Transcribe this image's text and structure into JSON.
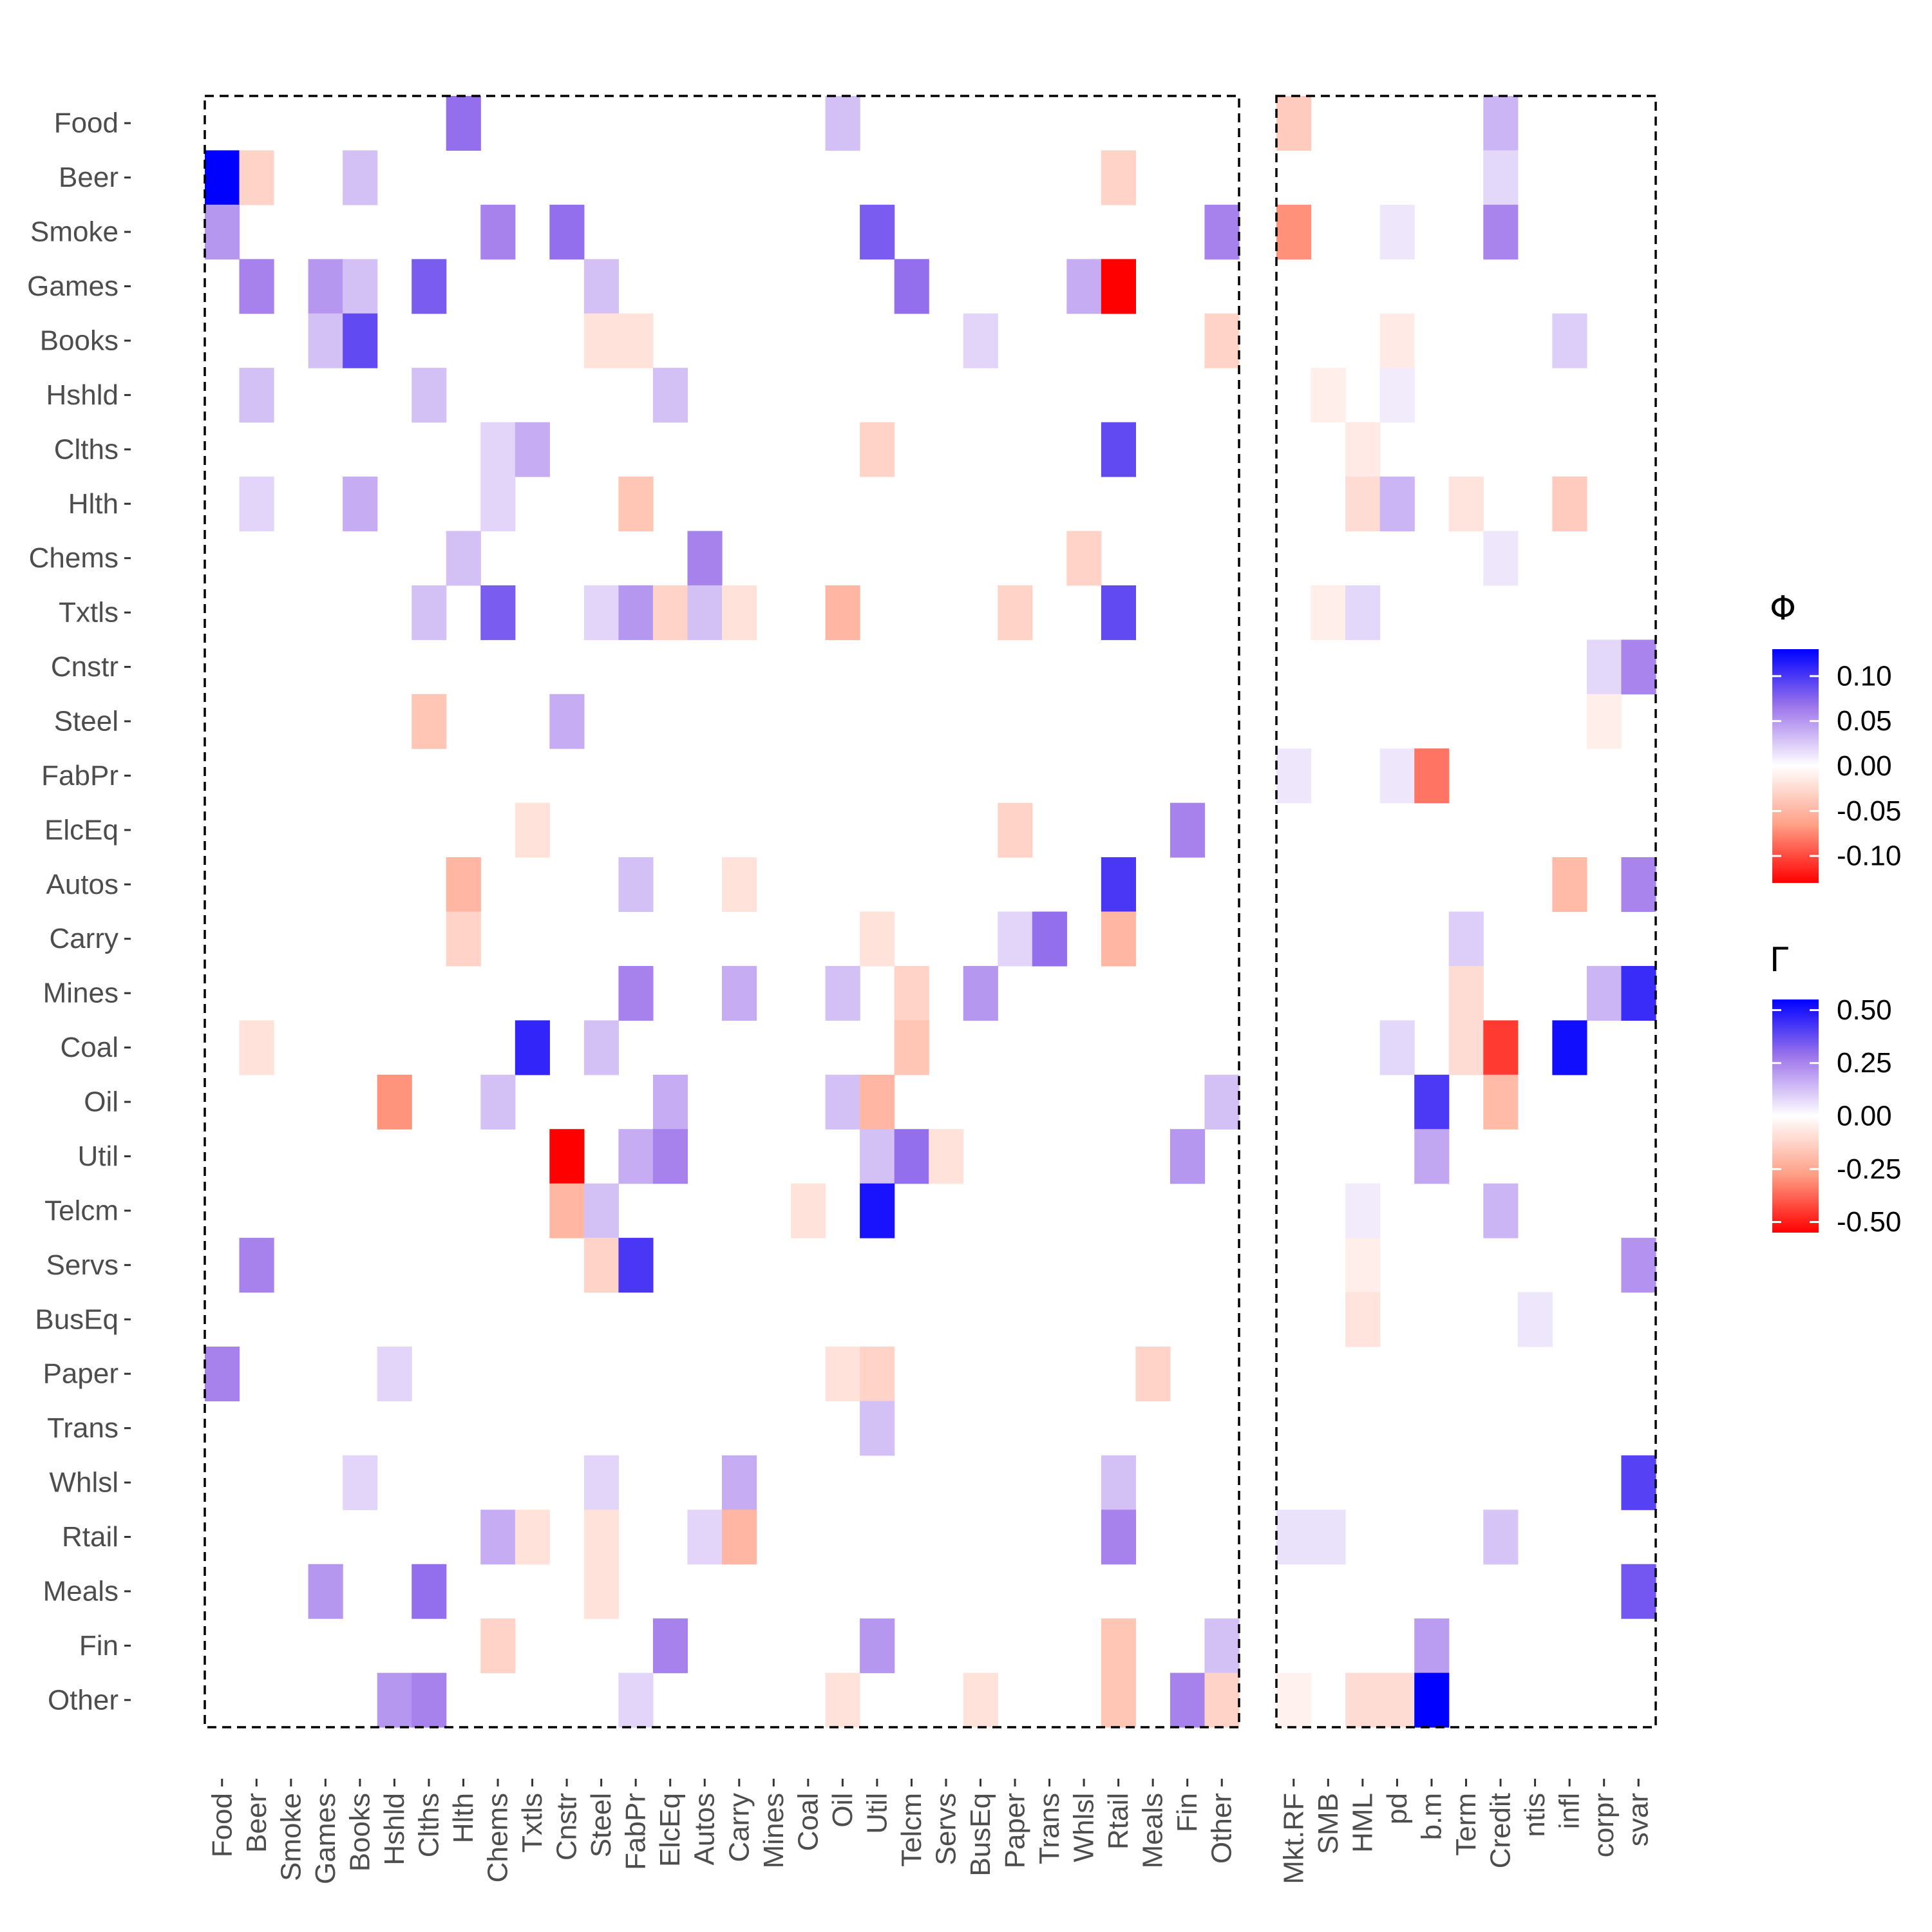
{
  "chart_data": {
    "type": "heatmap",
    "rows": [
      "Food",
      "Beer",
      "Smoke",
      "Games",
      "Books",
      "Hshld",
      "Clths",
      "Hlth",
      "Chems",
      "Txtls",
      "Cnstr",
      "Steel",
      "FabPr",
      "ElcEq",
      "Autos",
      "Carry",
      "Mines",
      "Coal",
      "Oil",
      "Util",
      "Telcm",
      "Servs",
      "BusEq",
      "Paper",
      "Trans",
      "Whlsl",
      "Rtail",
      "Meals",
      "Fin",
      "Other"
    ],
    "panels": [
      {
        "name": "Φ",
        "columns": [
          "Food",
          "Beer",
          "Smoke",
          "Games",
          "Books",
          "Hshld",
          "Clths",
          "Hlth",
          "Chems",
          "Txtls",
          "Cnstr",
          "Steel",
          "FabPr",
          "ElcEq",
          "Autos",
          "Carry",
          "Mines",
          "Coal",
          "Oil",
          "Util",
          "Telcm",
          "Servs",
          "BusEq",
          "Paper",
          "Trans",
          "Whlsl",
          "Rtail",
          "Meals",
          "Fin",
          "Other"
        ],
        "cells": [
          [
            "Food",
            "Hlth",
            0.07
          ],
          [
            "Food",
            "Oil",
            0.03
          ],
          [
            "Beer",
            "Food",
            0.13
          ],
          [
            "Beer",
            "Beer",
            -0.03
          ],
          [
            "Beer",
            "Books",
            0.03
          ],
          [
            "Beer",
            "Rtail",
            -0.03
          ],
          [
            "Smoke",
            "Food",
            0.05
          ],
          [
            "Smoke",
            "Chems",
            0.06
          ],
          [
            "Smoke",
            "Cnstr",
            0.07
          ],
          [
            "Smoke",
            "Util",
            0.08
          ],
          [
            "Smoke",
            "Other",
            0.06
          ],
          [
            "Games",
            "Beer",
            0.06
          ],
          [
            "Games",
            "Games",
            0.05
          ],
          [
            "Games",
            "Books",
            0.03
          ],
          [
            "Games",
            "Clths",
            0.08
          ],
          [
            "Games",
            "Steel",
            0.03
          ],
          [
            "Games",
            "Telcm",
            0.07
          ],
          [
            "Games",
            "Whlsl",
            0.04
          ],
          [
            "Games",
            "Rtail",
            -0.13
          ],
          [
            "Books",
            "Games",
            0.03
          ],
          [
            "Books",
            "Books",
            0.09
          ],
          [
            "Books",
            "Steel",
            -0.02
          ],
          [
            "Books",
            "FabPr",
            -0.02
          ],
          [
            "Books",
            "BusEq",
            0.02
          ],
          [
            "Books",
            "Other",
            -0.03
          ],
          [
            "Hshld",
            "Beer",
            0.03
          ],
          [
            "Hshld",
            "Clths",
            0.03
          ],
          [
            "Hshld",
            "ElcEq",
            0.03
          ],
          [
            "Clths",
            "Chems",
            0.02
          ],
          [
            "Clths",
            "Txtls",
            0.04
          ],
          [
            "Clths",
            "Util",
            -0.03
          ],
          [
            "Clths",
            "Rtail",
            0.09
          ],
          [
            "Hlth",
            "Beer",
            0.02
          ],
          [
            "Hlth",
            "Books",
            0.04
          ],
          [
            "Hlth",
            "Chems",
            0.02
          ],
          [
            "Hlth",
            "FabPr",
            -0.04
          ],
          [
            "Chems",
            "Hlth",
            0.03
          ],
          [
            "Chems",
            "Autos",
            0.06
          ],
          [
            "Chems",
            "Whlsl",
            -0.03
          ],
          [
            "Txtls",
            "Clths",
            0.03
          ],
          [
            "Txtls",
            "Chems",
            0.08
          ],
          [
            "Txtls",
            "Steel",
            0.02
          ],
          [
            "Txtls",
            "FabPr",
            0.05
          ],
          [
            "Txtls",
            "ElcEq",
            -0.03
          ],
          [
            "Txtls",
            "Autos",
            0.03
          ],
          [
            "Txtls",
            "Carry",
            -0.02
          ],
          [
            "Txtls",
            "Oil",
            -0.05
          ],
          [
            "Txtls",
            "Paper",
            -0.03
          ],
          [
            "Txtls",
            "Rtail",
            0.09
          ],
          [
            "Steel",
            "Clths",
            -0.04
          ],
          [
            "Steel",
            "Cnstr",
            0.04
          ],
          [
            "ElcEq",
            "Txtls",
            -0.02
          ],
          [
            "ElcEq",
            "Paper",
            -0.03
          ],
          [
            "ElcEq",
            "Fin",
            0.06
          ],
          [
            "Autos",
            "Hlth",
            -0.05
          ],
          [
            "Autos",
            "FabPr",
            0.03
          ],
          [
            "Autos",
            "Carry",
            -0.02
          ],
          [
            "Autos",
            "Rtail",
            0.1
          ],
          [
            "Carry",
            "Hlth",
            -0.03
          ],
          [
            "Carry",
            "Util",
            -0.02
          ],
          [
            "Carry",
            "Paper",
            0.02
          ],
          [
            "Carry",
            "Trans",
            0.07
          ],
          [
            "Carry",
            "Rtail",
            -0.05
          ],
          [
            "Mines",
            "FabPr",
            0.06
          ],
          [
            "Mines",
            "Carry",
            0.04
          ],
          [
            "Mines",
            "Oil",
            0.03
          ],
          [
            "Mines",
            "Telcm",
            -0.03
          ],
          [
            "Mines",
            "BusEq",
            0.05
          ],
          [
            "Coal",
            "Beer",
            -0.02
          ],
          [
            "Coal",
            "Txtls",
            0.11
          ],
          [
            "Coal",
            "Steel",
            0.03
          ],
          [
            "Coal",
            "Telcm",
            -0.04
          ],
          [
            "Oil",
            "Hshld",
            -0.07
          ],
          [
            "Oil",
            "Chems",
            0.03
          ],
          [
            "Oil",
            "ElcEq",
            0.04
          ],
          [
            "Oil",
            "Oil",
            0.03
          ],
          [
            "Oil",
            "Util",
            -0.05
          ],
          [
            "Oil",
            "Other",
            0.03
          ],
          [
            "Util",
            "Cnstr",
            -0.13
          ],
          [
            "Util",
            "FabPr",
            0.04
          ],
          [
            "Util",
            "ElcEq",
            0.06
          ],
          [
            "Util",
            "Util",
            0.03
          ],
          [
            "Util",
            "Telcm",
            0.07
          ],
          [
            "Util",
            "Servs",
            -0.02
          ],
          [
            "Util",
            "Fin",
            0.05
          ],
          [
            "Telcm",
            "Cnstr",
            -0.05
          ],
          [
            "Telcm",
            "Steel",
            0.03
          ],
          [
            "Telcm",
            "Coal",
            -0.02
          ],
          [
            "Telcm",
            "Util",
            0.12
          ],
          [
            "Servs",
            "Beer",
            0.06
          ],
          [
            "Servs",
            "Steel",
            -0.03
          ],
          [
            "Servs",
            "FabPr",
            0.1
          ],
          [
            "Paper",
            "Food",
            0.06
          ],
          [
            "Paper",
            "Hshld",
            0.02
          ],
          [
            "Paper",
            "Oil",
            -0.02
          ],
          [
            "Paper",
            "Util",
            -0.03
          ],
          [
            "Paper",
            "Meals",
            -0.03
          ],
          [
            "Trans",
            "Util",
            0.03
          ],
          [
            "Whlsl",
            "Books",
            0.02
          ],
          [
            "Whlsl",
            "Steel",
            0.02
          ],
          [
            "Whlsl",
            "Carry",
            0.04
          ],
          [
            "Whlsl",
            "Rtail",
            0.03
          ],
          [
            "Rtail",
            "Chems",
            0.04
          ],
          [
            "Rtail",
            "Txtls",
            -0.02
          ],
          [
            "Rtail",
            "Steel",
            -0.02
          ],
          [
            "Rtail",
            "Autos",
            0.02
          ],
          [
            "Rtail",
            "Carry",
            -0.05
          ],
          [
            "Rtail",
            "Rtail",
            0.06
          ],
          [
            "Meals",
            "Games",
            0.05
          ],
          [
            "Meals",
            "Clths",
            0.07
          ],
          [
            "Meals",
            "Steel",
            -0.02
          ],
          [
            "Fin",
            "Chems",
            -0.03
          ],
          [
            "Fin",
            "ElcEq",
            0.06
          ],
          [
            "Fin",
            "Util",
            0.05
          ],
          [
            "Fin",
            "Rtail",
            -0.04
          ],
          [
            "Fin",
            "Other",
            0.03
          ],
          [
            "Other",
            "Hshld",
            0.05
          ],
          [
            "Other",
            "Clths",
            0.06
          ],
          [
            "Other",
            "FabPr",
            0.02
          ],
          [
            "Other",
            "Oil",
            -0.02
          ],
          [
            "Other",
            "BusEq",
            -0.02
          ],
          [
            "Other",
            "Rtail",
            -0.04
          ],
          [
            "Other",
            "Fin",
            0.06
          ],
          [
            "Other",
            "Other",
            -0.03
          ]
        ]
      },
      {
        "name": "Γ",
        "columns": [
          "Mkt.RF",
          "SMB",
          "HML",
          "pd",
          "b.m",
          "Term",
          "Credit",
          "ntis",
          "infl",
          "corpr",
          "svar"
        ],
        "cells": [
          [
            "Food",
            "Mkt.RF",
            -0.15
          ],
          [
            "Food",
            "Credit",
            0.15
          ],
          [
            "Beer",
            "Credit",
            0.08
          ],
          [
            "Smoke",
            "Mkt.RF",
            -0.3
          ],
          [
            "Smoke",
            "pd",
            0.05
          ],
          [
            "Smoke",
            "Credit",
            0.25
          ],
          [
            "Books",
            "pd",
            -0.06
          ],
          [
            "Books",
            "infl",
            0.1
          ],
          [
            "Hshld",
            "SMB",
            -0.05
          ],
          [
            "Hshld",
            "pd",
            0.04
          ],
          [
            "Clths",
            "HML",
            -0.06
          ],
          [
            "Hlth",
            "HML",
            -0.1
          ],
          [
            "Hlth",
            "pd",
            0.15
          ],
          [
            "Hlth",
            "Term",
            -0.08
          ],
          [
            "Hlth",
            "infl",
            -0.15
          ],
          [
            "Chems",
            "Credit",
            0.05
          ],
          [
            "Txtls",
            "SMB",
            -0.05
          ],
          [
            "Txtls",
            "HML",
            0.08
          ],
          [
            "Cnstr",
            "corpr",
            0.08
          ],
          [
            "Cnstr",
            "svar",
            0.25
          ],
          [
            "Steel",
            "corpr",
            -0.05
          ],
          [
            "FabPr",
            "Mkt.RF",
            0.05
          ],
          [
            "FabPr",
            "pd",
            0.05
          ],
          [
            "FabPr",
            "b.m",
            -0.35
          ],
          [
            "Autos",
            "infl",
            -0.2
          ],
          [
            "Autos",
            "svar",
            0.25
          ],
          [
            "Carry",
            "Term",
            0.1
          ],
          [
            "Mines",
            "Term",
            -0.1
          ],
          [
            "Mines",
            "corpr",
            0.15
          ],
          [
            "Mines",
            "svar",
            0.45
          ],
          [
            "Coal",
            "pd",
            0.08
          ],
          [
            "Coal",
            "Term",
            -0.1
          ],
          [
            "Coal",
            "Credit",
            -0.45
          ],
          [
            "Coal",
            "infl",
            0.52
          ],
          [
            "Oil",
            "b.m",
            0.42
          ],
          [
            "Oil",
            "Credit",
            -0.2
          ],
          [
            "Util",
            "b.m",
            0.18
          ],
          [
            "Telcm",
            "HML",
            0.04
          ],
          [
            "Telcm",
            "Credit",
            0.15
          ],
          [
            "Servs",
            "HML",
            -0.05
          ],
          [
            "Servs",
            "svar",
            0.22
          ],
          [
            "BusEq",
            "HML",
            -0.08
          ],
          [
            "BusEq",
            "ntis",
            0.05
          ],
          [
            "Whlsl",
            "svar",
            0.4
          ],
          [
            "Rtail",
            "Mkt.RF",
            0.06
          ],
          [
            "Rtail",
            "SMB",
            0.06
          ],
          [
            "Rtail",
            "Credit",
            0.12
          ],
          [
            "Meals",
            "svar",
            0.35
          ],
          [
            "Fin",
            "b.m",
            0.2
          ],
          [
            "Other",
            "Mkt.RF",
            -0.04
          ],
          [
            "Other",
            "HML",
            -0.1
          ],
          [
            "Other",
            "pd",
            -0.1
          ],
          [
            "Other",
            "b.m",
            0.55
          ]
        ]
      }
    ],
    "legends": [
      {
        "title": "Φ",
        "ticks": [
          0.1,
          0.05,
          0.0,
          -0.05,
          -0.1
        ],
        "tick_labels": [
          "0.10",
          "0.05",
          "0.00",
          "-0.05",
          "-0.10"
        ],
        "range": [
          -0.13,
          0.13
        ]
      },
      {
        "title": "Γ",
        "ticks": [
          0.5,
          0.25,
          0.0,
          -0.25,
          -0.5
        ],
        "tick_labels": [
          "0.50",
          "0.25",
          "0.00",
          "-0.25",
          "-0.50"
        ],
        "range": [
          -0.55,
          0.55
        ]
      }
    ],
    "colors": {
      "low": "#ff0000",
      "mid": "#ffffff",
      "high": "#0000ff"
    }
  }
}
